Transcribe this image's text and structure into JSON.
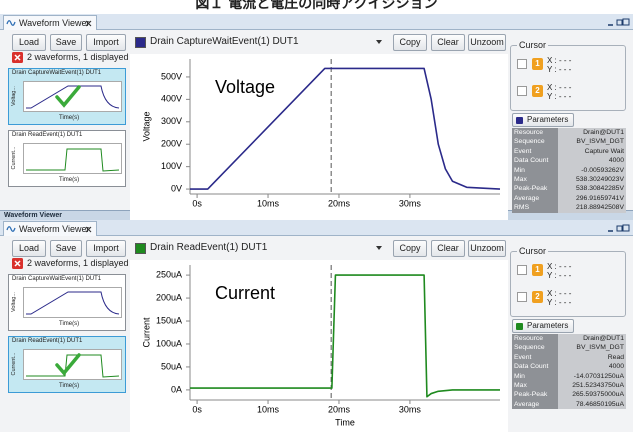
{
  "title": "図１ 電流と電圧の同時アクイジション",
  "divider_label": "Waveform Viewer",
  "panels": [
    {
      "tab": "Waveform Viewer",
      "buttons": [
        "Load",
        "Save",
        "Import"
      ],
      "waveform_select": "Drain CaptureWaitEvent(1) DUT1",
      "actions": [
        "Copy",
        "Clear",
        "Unzoom"
      ],
      "status": "2 waveforms, 1 displayed",
      "selected_thumbnail": 0,
      "thumbnails": [
        {
          "title": "Drain CaptureWaitEvent(1) DUT1",
          "ylabel": "Voltag...",
          "xlabel": "Time(s)"
        },
        {
          "title": "Drain ReadEvent(1) DUT1",
          "ylabel": "Current...",
          "xlabel": "Time(s)"
        }
      ],
      "cursor": {
        "title": "Cursor",
        "rows": [
          {
            "marker": "1",
            "x": "X : - - -",
            "y": "Y : - - -"
          },
          {
            "marker": "2",
            "x": "X : - - -",
            "y": "Y : - - -"
          }
        ]
      },
      "parameters": {
        "title": "Parameters",
        "rows": [
          [
            "Resource",
            "Drain@DUT1"
          ],
          [
            "Sequence",
            "BV_ISVM_DGT"
          ],
          [
            "Event",
            "Capture Wait"
          ],
          [
            "Data Count",
            "4000"
          ],
          [
            "Min",
            "-0.00593262V"
          ],
          [
            "Max",
            "538.30249023V"
          ],
          [
            "Peak-Peak",
            "538.30842285V"
          ],
          [
            "Average",
            "296.91659741V"
          ],
          [
            "RMS",
            "218.88942508V"
          ]
        ]
      },
      "chart": {
        "type": "line",
        "annotation": "Voltage",
        "ylabel": "Voltage",
        "color": "#2b2a8a",
        "x": [
          -1,
          1.5,
          18,
          32,
          33,
          34,
          35,
          36,
          38,
          42.7
        ],
        "values": [
          0,
          0,
          538,
          538,
          400,
          200,
          90,
          35,
          8,
          0
        ],
        "xlim": [
          -1,
          42.7
        ],
        "ylim": [
          -22,
          580
        ],
        "cursor_line": 18.9,
        "xticks": [
          {
            "value": 0,
            "label": "0s"
          },
          {
            "value": 10,
            "label": "10ms"
          },
          {
            "value": 20,
            "label": "20ms"
          },
          {
            "value": 30,
            "label": "30ms"
          }
        ],
        "yticks": [
          {
            "value": 0,
            "label": "0V"
          },
          {
            "value": 100,
            "label": "100V"
          },
          {
            "value": 200,
            "label": "200V"
          },
          {
            "value": 300,
            "label": "300V"
          },
          {
            "value": 400,
            "label": "400V"
          },
          {
            "value": 500,
            "label": "500V"
          }
        ]
      }
    },
    {
      "tab": "Waveform Viewer",
      "buttons": [
        "Load",
        "Save",
        "Import"
      ],
      "waveform_select": "Drain ReadEvent(1) DUT1",
      "actions": [
        "Copy",
        "Clear",
        "Unzoom"
      ],
      "status": "2 waveforms, 1 displayed",
      "selected_thumbnail": 1,
      "thumbnails": [
        {
          "title": "Drain CaptureWaitEvent(1) DUT1",
          "ylabel": "Voltag...",
          "xlabel": "Time(s)"
        },
        {
          "title": "Drain ReadEvent(1) DUT1",
          "ylabel": "Current...",
          "xlabel": "Time(s)"
        }
      ],
      "cursor": {
        "title": "Cursor",
        "rows": [
          {
            "marker": "1",
            "x": "X : - - -",
            "y": "Y : - - -"
          },
          {
            "marker": "2",
            "x": "X : - - -",
            "y": "Y : - - -"
          }
        ]
      },
      "parameters": {
        "title": "Parameters",
        "rows": [
          [
            "Resource",
            "Drain@DUT1"
          ],
          [
            "Sequence",
            "BV_ISVM_DGT"
          ],
          [
            "Event",
            "Read"
          ],
          [
            "Data Count",
            "4000"
          ],
          [
            "Min",
            "-14.07031250uA"
          ],
          [
            "Max",
            "251.52343750uA"
          ],
          [
            "Peak-Peak",
            "265.59375000uA"
          ],
          [
            "Average",
            "78.46850195uA"
          ]
        ]
      },
      "chart": {
        "type": "line",
        "annotation": "Current",
        "ylabel": "Current",
        "xlabel": "Time",
        "color": "#1f8a1f",
        "x": [
          -1,
          19,
          19.5,
          32,
          32.4,
          33,
          34,
          36,
          42.7
        ],
        "values": [
          4,
          4,
          250,
          250,
          -15,
          -8,
          -3,
          0,
          0
        ],
        "xlim": [
          -1,
          42.7
        ],
        "ylim": [
          -22,
          272
        ],
        "cursor_line": 18.9,
        "xticks": [
          {
            "value": 0,
            "label": "0s"
          },
          {
            "value": 10,
            "label": "10ms"
          },
          {
            "value": 20,
            "label": "20ms"
          },
          {
            "value": 30,
            "label": "30ms"
          }
        ],
        "yticks": [
          {
            "value": 0,
            "label": "0A"
          },
          {
            "value": 50,
            "label": "50uA"
          },
          {
            "value": 100,
            "label": "100uA"
          },
          {
            "value": 150,
            "label": "150uA"
          },
          {
            "value": 200,
            "label": "200uA"
          },
          {
            "value": 250,
            "label": "250uA"
          }
        ]
      }
    }
  ]
}
